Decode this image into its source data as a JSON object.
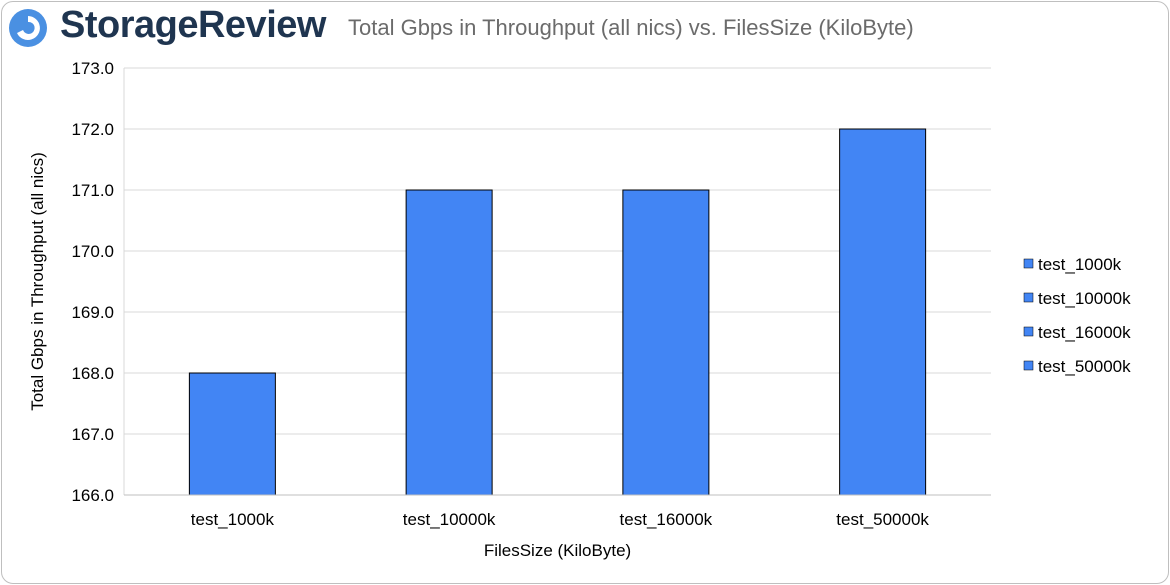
{
  "brand": {
    "name": "StorageReview"
  },
  "colors": {
    "bar": "#4285f4",
    "bar_stroke": "#000000",
    "grid": "#d9d9d9",
    "brand": "#1f3550",
    "logo": "#4a90e2"
  },
  "chart_data": {
    "type": "bar",
    "title": "Total Gbps in Throughput (all nics) vs. FilesSize (KiloByte)",
    "xlabel": "FilesSize (KiloByte)",
    "ylabel": "Total Gbps in Throughput (all nics)",
    "categories": [
      "test_1000k",
      "test_10000k",
      "test_16000k",
      "test_50000k"
    ],
    "values": [
      168.0,
      171.0,
      171.0,
      172.0
    ],
    "ylim": [
      166.0,
      173.0
    ],
    "yticks": [
      "166.0",
      "167.0",
      "168.0",
      "169.0",
      "170.0",
      "171.0",
      "172.0",
      "173.0"
    ],
    "legend": [
      "test_1000k",
      "test_10000k",
      "test_16000k",
      "test_50000k"
    ],
    "legend_position": "right",
    "grid": true
  }
}
